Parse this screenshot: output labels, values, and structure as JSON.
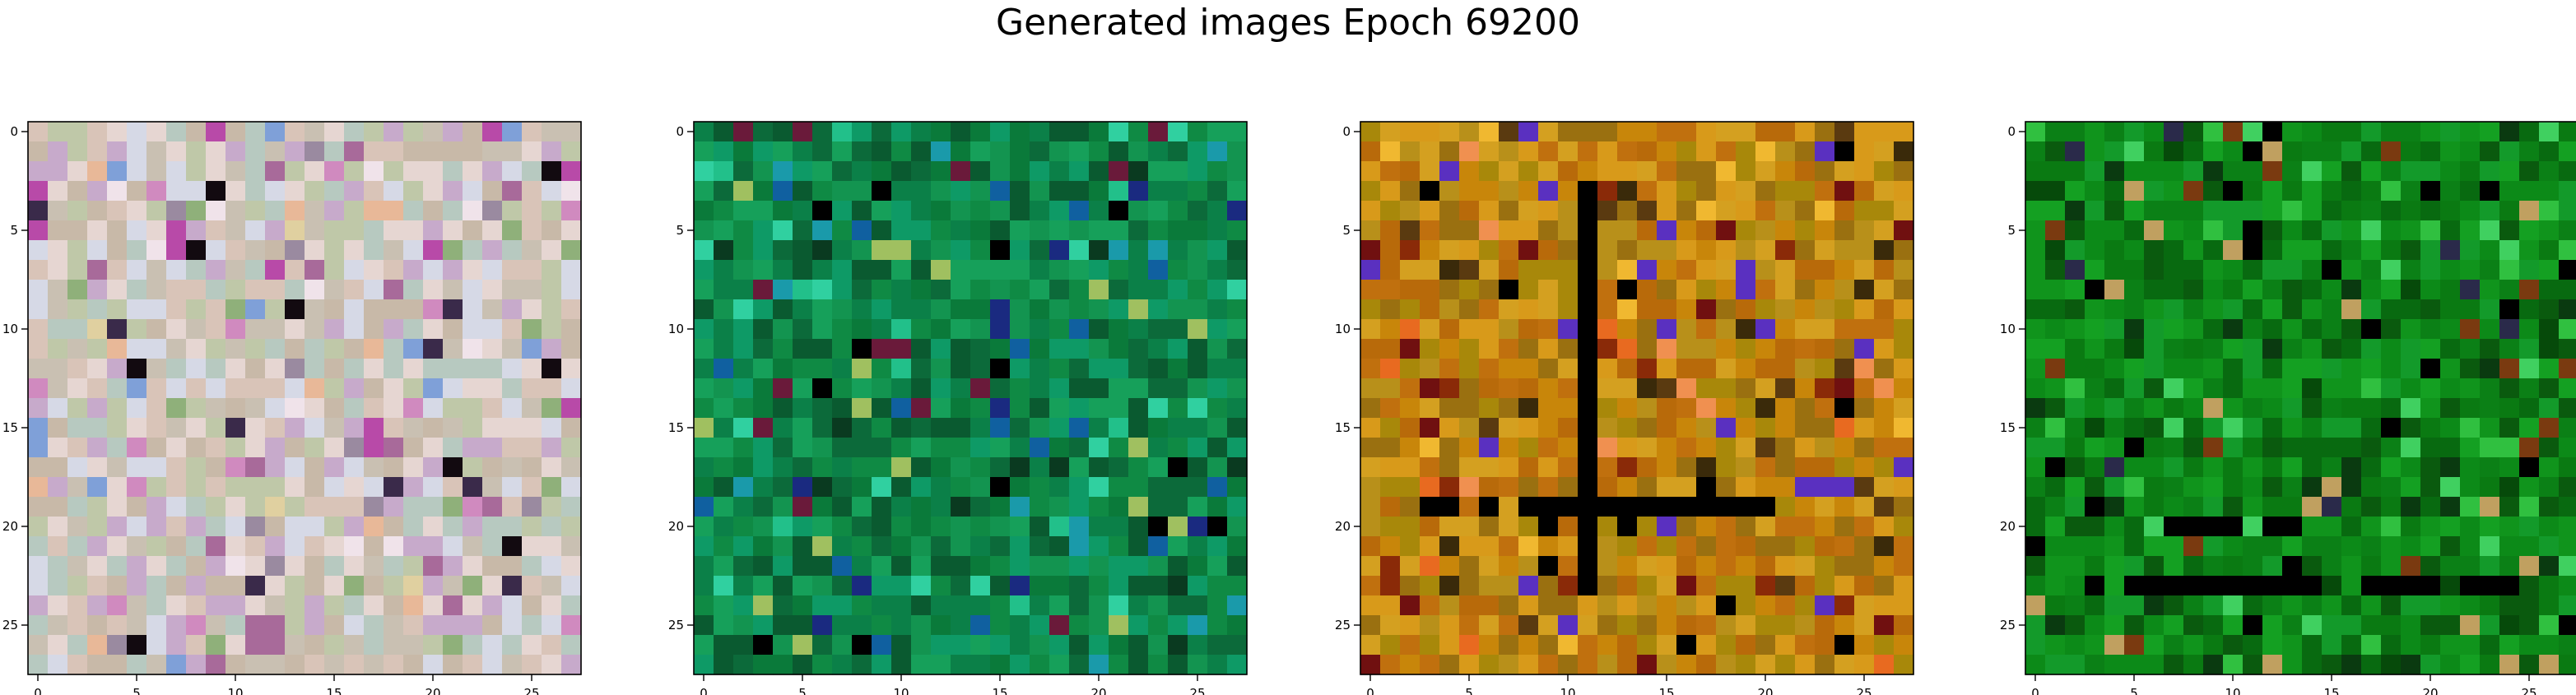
{
  "figure": {
    "title": "Generated images Epoch 69200"
  },
  "panels": [
    {
      "name": "panel-1",
      "grid_size": 28,
      "xticks": [
        0,
        5,
        10,
        15,
        20,
        25
      ],
      "yticks": [
        0,
        5,
        10,
        15,
        20,
        25
      ],
      "palette": {
        "base": [
          "#c8b9a8",
          "#d9c4b8",
          "#bfc8a8",
          "#e6d6d2",
          "#c7aacb",
          "#b7c9c0",
          "#d6d9e6",
          "#c9c0b2"
        ],
        "accents": [
          "#9a8aa0",
          "#f0e3ea",
          "#e8b898",
          "#8fb07a",
          "#d08abf",
          "#7fa0d8",
          "#e0d0a0",
          "#a86a9a",
          "#3a2a4a",
          "#120a10",
          "#b84aa8"
        ]
      }
    },
    {
      "name": "panel-2",
      "grid_size": 28,
      "xticks": [
        0,
        5,
        10,
        15,
        20,
        25
      ],
      "yticks": [
        0,
        5,
        10,
        15,
        20,
        25
      ],
      "palette": {
        "base": [
          "#0a7a3a",
          "#0f8a44",
          "#0c6a3a",
          "#139450",
          "#0a5a30",
          "#16a05a",
          "#0b8048",
          "#0e9a66"
        ],
        "accents": [
          "#22c08a",
          "#1a9aaa",
          "#0a3a20",
          "#30d0a0",
          "#1060a0",
          "#1a2a80",
          "#000000",
          "#6a1a3a",
          "#a0c060"
        ]
      }
    },
    {
      "name": "panel-3",
      "grid_size": 28,
      "xticks": [
        0,
        5,
        10,
        15,
        20,
        25
      ],
      "yticks": [
        0,
        5,
        10,
        15,
        20,
        25
      ],
      "palette": {
        "base": [
          "#c8860a",
          "#b86a0a",
          "#d89a1a",
          "#a8880a",
          "#c0700e",
          "#d4a020",
          "#9a7010",
          "#b8901a"
        ],
        "accents": [
          "#8a2a08",
          "#e86a20",
          "#f0b830",
          "#5a3a10",
          "#3a2a0a",
          "#000000",
          "#5a30c0",
          "#f09050",
          "#701010"
        ]
      }
    },
    {
      "name": "panel-4",
      "grid_size": 28,
      "xticks": [
        0,
        5,
        10,
        15,
        20,
        25
      ],
      "yticks": [
        0,
        5,
        10,
        15,
        20,
        25
      ],
      "palette": {
        "base": [
          "#0a7a12",
          "#0c8a18",
          "#086a10",
          "#10941c",
          "#0a5a0e",
          "#14a022",
          "#0b8016",
          "#139a2a"
        ],
        "accents": [
          "#30c040",
          "#064a0a",
          "#0a3a10",
          "#000000",
          "#c0a060",
          "#7a3a10",
          "#2a2a4a",
          "#40d060"
        ]
      }
    }
  ]
}
